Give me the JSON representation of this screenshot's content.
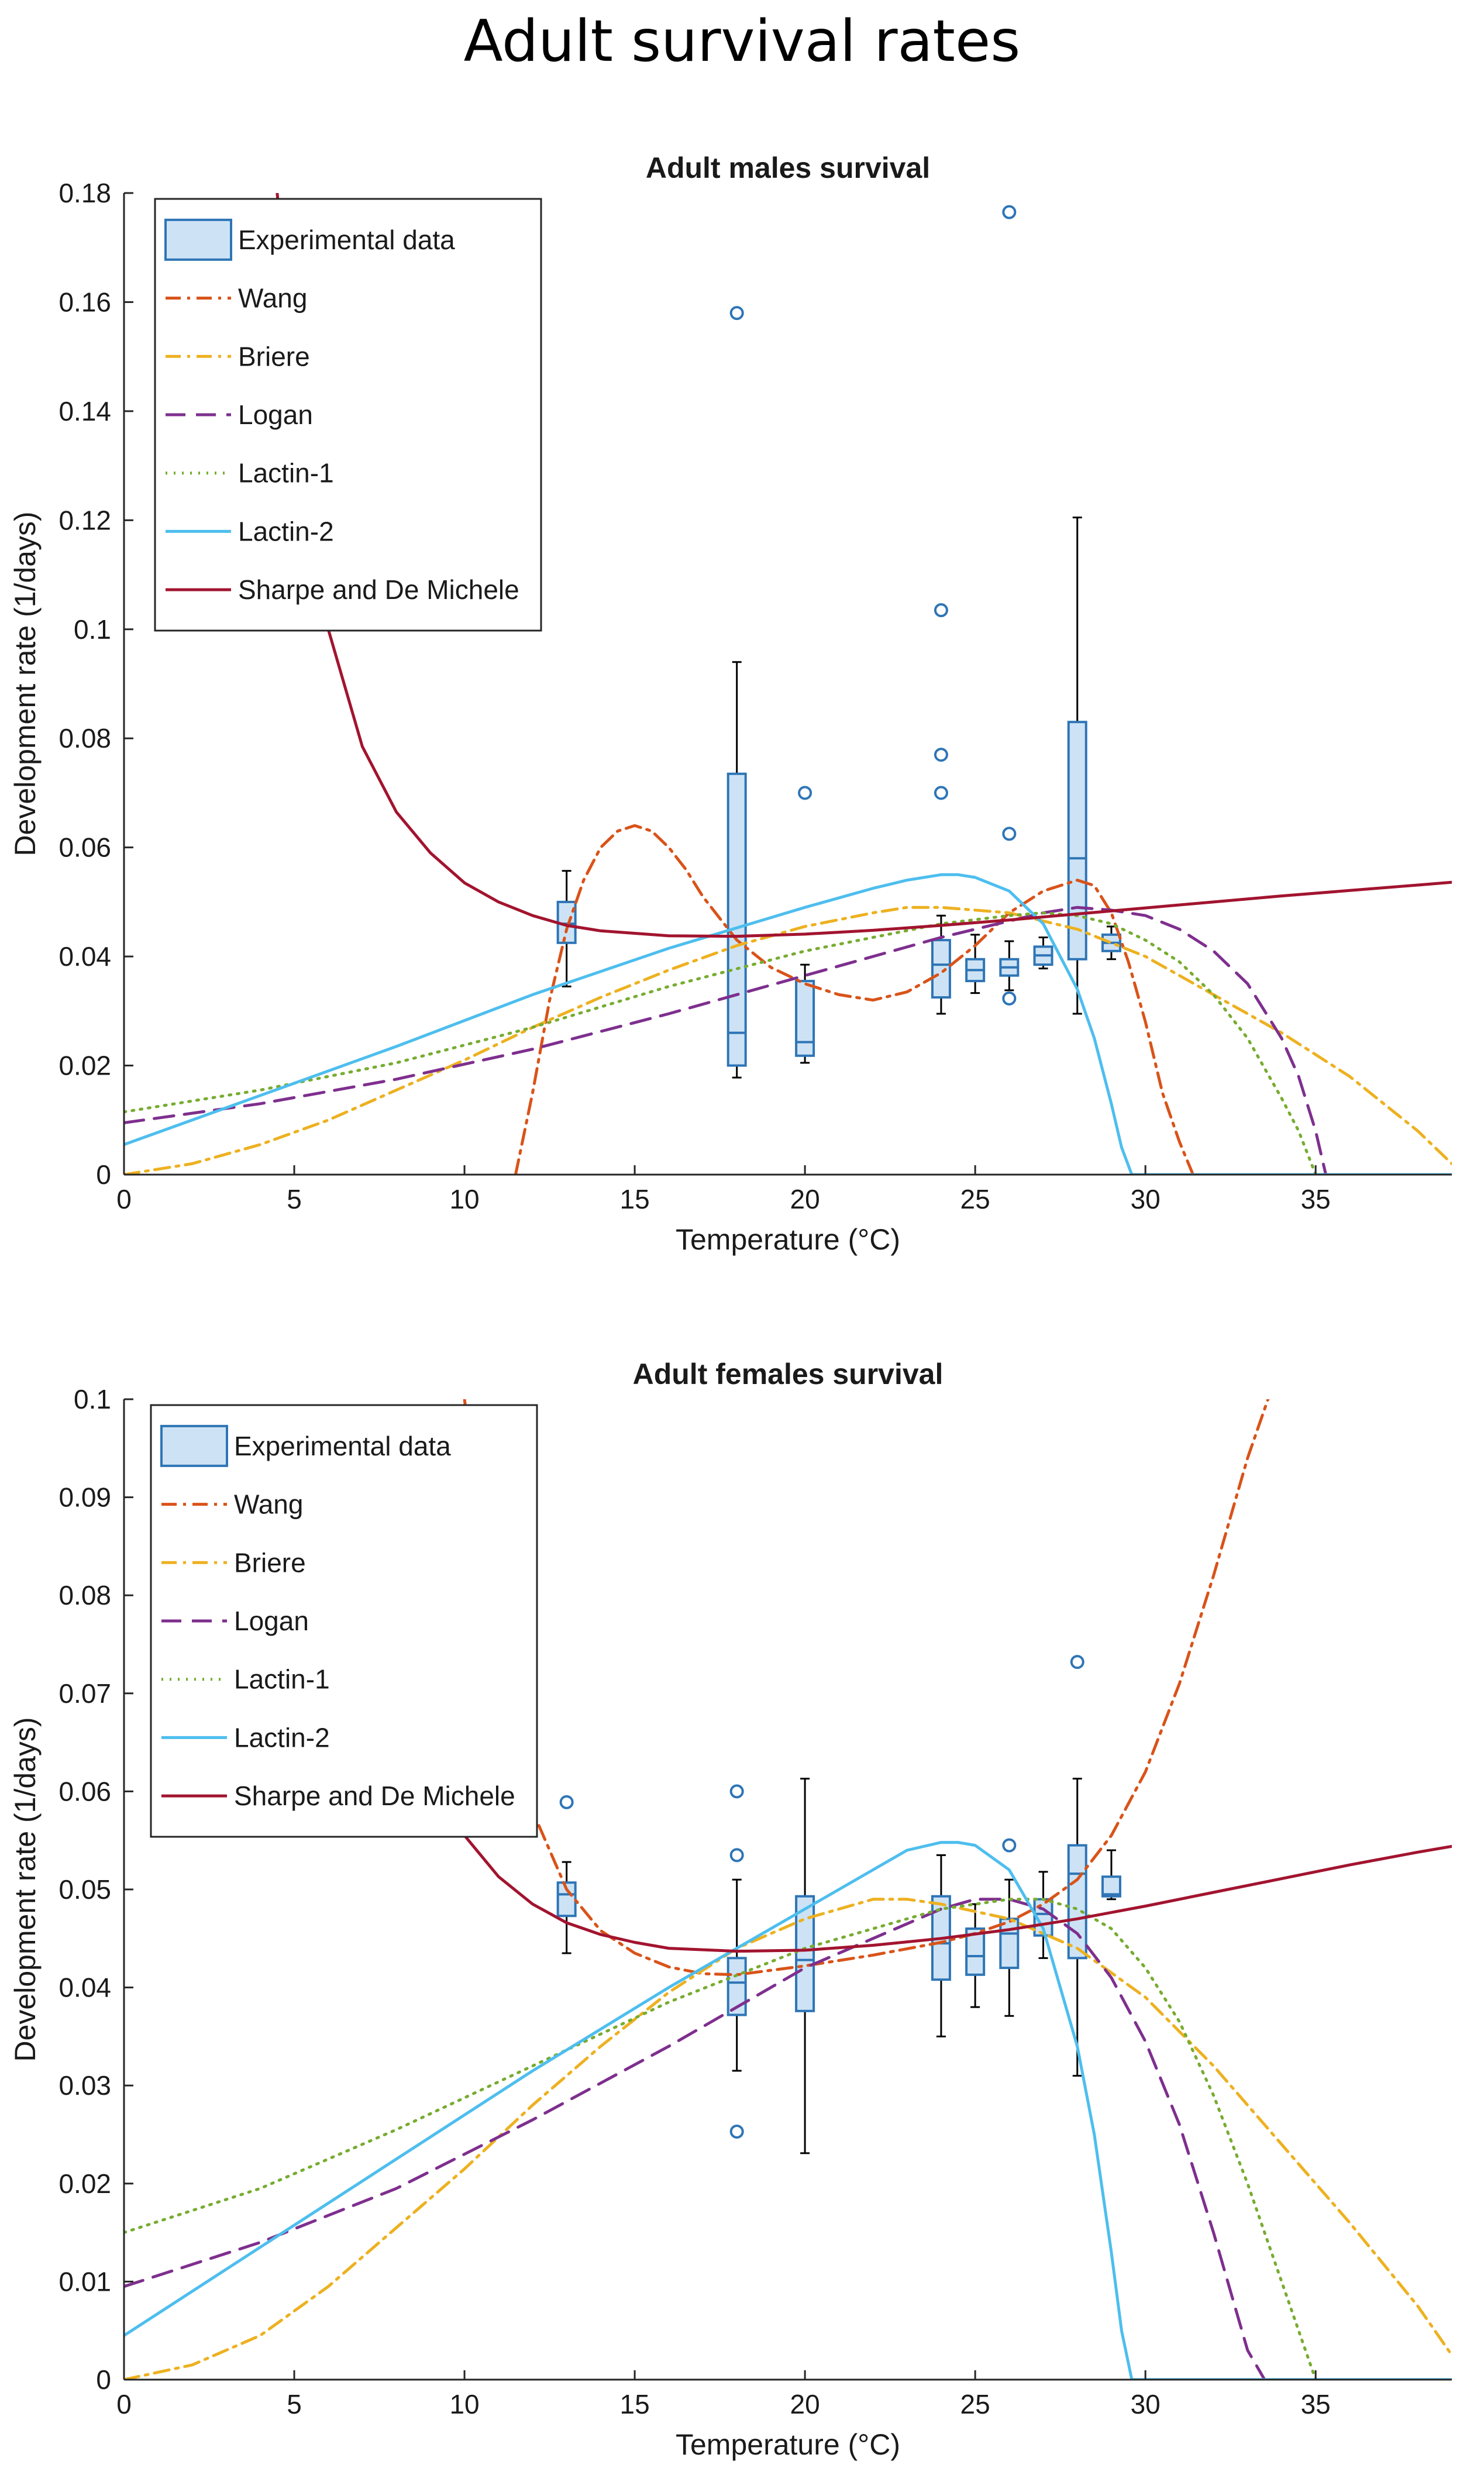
{
  "title": "Adult survival rates",
  "chart_data": [
    {
      "type": "box+line",
      "title": "Adult males survival",
      "xlabel": "Temperature (°C)",
      "ylabel": "Development rate (1/days)",
      "xlim": [
        0,
        39
      ],
      "ylim": [
        0,
        0.18
      ],
      "xticks": [
        0,
        5,
        10,
        15,
        20,
        25,
        30,
        35
      ],
      "yticks": [
        0,
        0.02,
        0.04,
        0.06,
        0.08,
        0.1,
        0.12,
        0.14,
        0.16,
        0.18
      ],
      "xtick_labels": [
        "0",
        "5",
        "10",
        "15",
        "20",
        "25",
        "30",
        "35"
      ],
      "ytick_labels": [
        "0",
        "0.02",
        "0.04",
        "0.06",
        "0.08",
        "0.1",
        "0.12",
        "0.14",
        "0.16",
        "0.18"
      ],
      "grid": false,
      "legend_position": "top-left",
      "legend": [
        "Experimental data",
        "Wang",
        "Briere",
        "Logan",
        "Lactin-1",
        "Lactin-2",
        "Sharpe and De Michele"
      ],
      "boxes": [
        {
          "x": 13,
          "wlo": 0.0345,
          "q1": 0.0425,
          "med": 0.046,
          "q3": 0.05,
          "whi": 0.0557,
          "outliers": []
        },
        {
          "x": 18,
          "wlo": 0.0178,
          "q1": 0.02,
          "med": 0.026,
          "q3": 0.0735,
          "whi": 0.094,
          "outliers": [
            0.158
          ]
        },
        {
          "x": 20,
          "wlo": 0.0205,
          "q1": 0.0218,
          "med": 0.0243,
          "q3": 0.0355,
          "whi": 0.0385,
          "outliers": [
            0.07
          ]
        },
        {
          "x": 24,
          "wlo": 0.0295,
          "q1": 0.0325,
          "med": 0.0385,
          "q3": 0.043,
          "whi": 0.0475,
          "outliers": [
            0.07,
            0.077,
            0.1035
          ]
        },
        {
          "x": 25,
          "wlo": 0.0333,
          "q1": 0.0355,
          "med": 0.0375,
          "q3": 0.0395,
          "whi": 0.044,
          "outliers": []
        },
        {
          "x": 26,
          "wlo": 0.0338,
          "q1": 0.0365,
          "med": 0.038,
          "q3": 0.0395,
          "whi": 0.0428,
          "outliers": [
            0.0323,
            0.0625,
            0.1765
          ]
        },
        {
          "x": 27,
          "wlo": 0.0378,
          "q1": 0.0385,
          "med": 0.0402,
          "q3": 0.0418,
          "whi": 0.0435,
          "outliers": []
        },
        {
          "x": 28,
          "wlo": 0.0295,
          "q1": 0.0395,
          "med": 0.058,
          "q3": 0.083,
          "whi": 0.1205,
          "outliers": []
        },
        {
          "x": 29,
          "wlo": 0.0395,
          "q1": 0.041,
          "med": 0.0425,
          "q3": 0.044,
          "whi": 0.0455,
          "outliers": []
        }
      ],
      "series": [
        {
          "name": "Wang",
          "color": "#d95319",
          "dash": "dashdot",
          "x": [
            11.5,
            12,
            12.5,
            13,
            13.5,
            14,
            14.5,
            15,
            15.5,
            16,
            16.5,
            17,
            17.5,
            18,
            19,
            20,
            21,
            22,
            23,
            24,
            25,
            26,
            27,
            28,
            28.5,
            29,
            29.5,
            30,
            30.5,
            31,
            31.4
          ],
          "y": [
            0,
            0.015,
            0.032,
            0.045,
            0.054,
            0.06,
            0.063,
            0.064,
            0.063,
            0.06,
            0.056,
            0.051,
            0.047,
            0.043,
            0.038,
            0.035,
            0.033,
            0.032,
            0.0335,
            0.037,
            0.042,
            0.048,
            0.052,
            0.054,
            0.053,
            0.048,
            0.039,
            0.028,
            0.015,
            0.006,
            0
          ]
        },
        {
          "name": "Briere",
          "color": "#edb120",
          "dash": "dashdot",
          "x": [
            0,
            2,
            4,
            6,
            8,
            10,
            12,
            14,
            16,
            18,
            20,
            22,
            23,
            24,
            26,
            28,
            30,
            32,
            34,
            36,
            38,
            39
          ],
          "y": [
            0,
            0.002,
            0.0055,
            0.01,
            0.0155,
            0.021,
            0.027,
            0.0325,
            0.0375,
            0.042,
            0.0455,
            0.048,
            0.049,
            0.049,
            0.048,
            0.045,
            0.04,
            0.033,
            0.026,
            0.018,
            0.008,
            0.002
          ]
        },
        {
          "name": "Logan",
          "color": "#7e2f8e",
          "dash": "dashed",
          "x": [
            0,
            4,
            8,
            12,
            16,
            20,
            24,
            26,
            27,
            28,
            29,
            30,
            31,
            32,
            33,
            34,
            34.5,
            35,
            35.3,
            39
          ],
          "y": [
            0.0095,
            0.013,
            0.0175,
            0.023,
            0.0295,
            0.0365,
            0.0435,
            0.0465,
            0.048,
            0.049,
            0.0485,
            0.0475,
            0.045,
            0.041,
            0.035,
            0.025,
            0.018,
            0.008,
            0,
            0
          ]
        },
        {
          "name": "Lactin-1",
          "color": "#77ac30",
          "dash": "dotted",
          "x": [
            0,
            4,
            8,
            12,
            16,
            20,
            24,
            26,
            27,
            28,
            29,
            30,
            31,
            32,
            33,
            34,
            34.5,
            35,
            39
          ],
          "y": [
            0.0115,
            0.0155,
            0.0205,
            0.027,
            0.0345,
            0.041,
            0.046,
            0.0475,
            0.048,
            0.0475,
            0.046,
            0.043,
            0.039,
            0.033,
            0.025,
            0.014,
            0.008,
            0,
            0
          ]
        },
        {
          "name": "Lactin-2",
          "color": "#4dbeee",
          "dash": "solid",
          "x": [
            0,
            4,
            8,
            12,
            16,
            20,
            22,
            23,
            24,
            24.5,
            25,
            26,
            27,
            28,
            28.5,
            29,
            29.3,
            29.6,
            39
          ],
          "y": [
            0.0055,
            0.0145,
            0.0235,
            0.033,
            0.0415,
            0.049,
            0.0525,
            0.054,
            0.055,
            0.055,
            0.0545,
            0.052,
            0.046,
            0.034,
            0.025,
            0.013,
            0.005,
            0,
            0
          ]
        },
        {
          "name": "Sharpe and De Michele",
          "color": "#a2142f",
          "dash": "solid",
          "x": [
            4.5,
            5,
            6,
            7,
            8,
            9,
            10,
            11,
            12,
            13,
            14,
            16,
            18,
            20,
            22,
            24,
            26,
            28,
            30,
            32,
            34,
            36,
            38,
            39
          ],
          "y": [
            0.18,
            0.14,
            0.1,
            0.0785,
            0.0665,
            0.059,
            0.0535,
            0.05,
            0.0475,
            0.0457,
            0.0447,
            0.0438,
            0.0437,
            0.0441,
            0.0448,
            0.0457,
            0.0467,
            0.0478,
            0.0489,
            0.05,
            0.0511,
            0.0521,
            0.0531,
            0.0536
          ]
        }
      ]
    },
    {
      "type": "box+line",
      "title": "Adult females survival",
      "xlabel": "Temperature (°C)",
      "ylabel": "Development rate (1/days)",
      "xlim": [
        0,
        39
      ],
      "ylim": [
        0,
        0.1
      ],
      "xticks": [
        0,
        5,
        10,
        15,
        20,
        25,
        30,
        35
      ],
      "yticks": [
        0,
        0.01,
        0.02,
        0.03,
        0.04,
        0.05,
        0.06,
        0.07,
        0.08,
        0.09,
        0.1
      ],
      "xtick_labels": [
        "0",
        "5",
        "10",
        "15",
        "20",
        "25",
        "30",
        "35"
      ],
      "ytick_labels": [
        "0",
        "0.01",
        "0.02",
        "0.03",
        "0.04",
        "0.05",
        "0.06",
        "0.07",
        "0.08",
        "0.09",
        "0.1"
      ],
      "grid": false,
      "legend_position": "top-left",
      "legend": [
        "Experimental data",
        "Wang",
        "Briere",
        "Logan",
        "Lactin-1",
        "Lactin-2",
        "Sharpe and De Michele"
      ],
      "boxes": [
        {
          "x": 13,
          "wlo": 0.0435,
          "q1": 0.0473,
          "med": 0.0495,
          "q3": 0.0507,
          "whi": 0.0528,
          "outliers": [
            0.0589
          ]
        },
        {
          "x": 18,
          "wlo": 0.0315,
          "q1": 0.0372,
          "med": 0.0405,
          "q3": 0.043,
          "whi": 0.051,
          "outliers": [
            0.0253,
            0.0535,
            0.06
          ]
        },
        {
          "x": 20,
          "wlo": 0.0231,
          "q1": 0.0376,
          "med": 0.0428,
          "q3": 0.0493,
          "whi": 0.0613,
          "outliers": []
        },
        {
          "x": 24,
          "wlo": 0.035,
          "q1": 0.0408,
          "med": 0.0445,
          "q3": 0.0493,
          "whi": 0.0535,
          "outliers": []
        },
        {
          "x": 25,
          "wlo": 0.038,
          "q1": 0.0413,
          "med": 0.0432,
          "q3": 0.046,
          "whi": 0.0485,
          "outliers": []
        },
        {
          "x": 26,
          "wlo": 0.0371,
          "q1": 0.042,
          "med": 0.0455,
          "q3": 0.047,
          "whi": 0.051,
          "outliers": [
            0.0545
          ]
        },
        {
          "x": 27,
          "wlo": 0.043,
          "q1": 0.0453,
          "med": 0.0475,
          "q3": 0.049,
          "whi": 0.0518,
          "outliers": []
        },
        {
          "x": 28,
          "wlo": 0.031,
          "q1": 0.043,
          "med": 0.0516,
          "q3": 0.0545,
          "whi": 0.0613,
          "outliers": [
            0.0732
          ]
        },
        {
          "x": 29,
          "wlo": 0.049,
          "q1": 0.0493,
          "med": 0.0495,
          "q3": 0.0513,
          "whi": 0.054,
          "outliers": []
        }
      ],
      "series": [
        {
          "name": "Wang",
          "color": "#d95319",
          "dash": "dashdot",
          "x": [
            10,
            11,
            12,
            13,
            14,
            15,
            16,
            17,
            18,
            20,
            22,
            24,
            25,
            26,
            27,
            28,
            29,
            30,
            31,
            32,
            33,
            33.6
          ],
          "y": [
            0.1,
            0.0715,
            0.058,
            0.05,
            0.0458,
            0.0435,
            0.0421,
            0.0414,
            0.0413,
            0.0422,
            0.0433,
            0.0446,
            0.0455,
            0.0467,
            0.0485,
            0.051,
            0.0555,
            0.062,
            0.071,
            0.082,
            0.094,
            0.1
          ]
        },
        {
          "name": "Briere",
          "color": "#edb120",
          "dash": "dashdot",
          "x": [
            0,
            2,
            4,
            6,
            8,
            10,
            12,
            14,
            16,
            18,
            20,
            22,
            23,
            24,
            26,
            28,
            30,
            32,
            34,
            36,
            38,
            39
          ],
          "y": [
            0,
            0.0015,
            0.0045,
            0.0095,
            0.0155,
            0.0215,
            0.028,
            0.034,
            0.0395,
            0.044,
            0.047,
            0.049,
            0.049,
            0.0485,
            0.047,
            0.044,
            0.039,
            0.032,
            0.024,
            0.016,
            0.0075,
            0.0025
          ]
        },
        {
          "name": "Logan",
          "color": "#7e2f8e",
          "dash": "dashed",
          "x": [
            0,
            4,
            8,
            12,
            16,
            20,
            24,
            25,
            26,
            27,
            28,
            29,
            30,
            31,
            32,
            32.5,
            33,
            33.5,
            39
          ],
          "y": [
            0.0095,
            0.014,
            0.0195,
            0.0265,
            0.034,
            0.042,
            0.048,
            0.049,
            0.049,
            0.048,
            0.0455,
            0.041,
            0.0345,
            0.026,
            0.015,
            0.009,
            0.003,
            0,
            0
          ]
        },
        {
          "name": "Lactin-1",
          "color": "#77ac30",
          "dash": "dotted",
          "x": [
            0,
            4,
            8,
            12,
            16,
            20,
            24,
            26,
            27,
            28,
            29,
            30,
            31,
            32,
            33,
            34,
            34.5,
            35,
            39
          ],
          "y": [
            0.015,
            0.0195,
            0.0255,
            0.032,
            0.0385,
            0.044,
            0.048,
            0.049,
            0.049,
            0.048,
            0.046,
            0.042,
            0.0365,
            0.029,
            0.02,
            0.01,
            0.005,
            0,
            0
          ]
        },
        {
          "name": "Lactin-2",
          "color": "#4dbeee",
          "dash": "solid",
          "x": [
            0,
            4,
            8,
            12,
            16,
            20,
            22,
            23,
            24,
            24.5,
            25,
            26,
            27,
            28,
            28.5,
            29,
            29.3,
            29.6,
            39
          ],
          "y": [
            0.0045,
            0.0135,
            0.0225,
            0.0315,
            0.04,
            0.048,
            0.052,
            0.054,
            0.0548,
            0.0548,
            0.0545,
            0.052,
            0.046,
            0.034,
            0.025,
            0.013,
            0.005,
            0,
            0
          ]
        },
        {
          "name": "Sharpe and De Michele",
          "color": "#a2142f",
          "dash": "solid",
          "x": [
            8.5,
            9,
            10,
            11,
            12,
            13,
            14,
            15,
            16,
            18,
            20,
            22,
            24,
            26,
            28,
            30,
            32,
            34,
            36,
            38,
            39
          ],
          "y": [
            0.0665,
            0.0615,
            0.0555,
            0.0513,
            0.0485,
            0.0466,
            0.0454,
            0.0446,
            0.044,
            0.0437,
            0.0438,
            0.0443,
            0.045,
            0.0459,
            0.047,
            0.0483,
            0.0497,
            0.0511,
            0.0525,
            0.0538,
            0.0544
          ]
        }
      ]
    }
  ]
}
